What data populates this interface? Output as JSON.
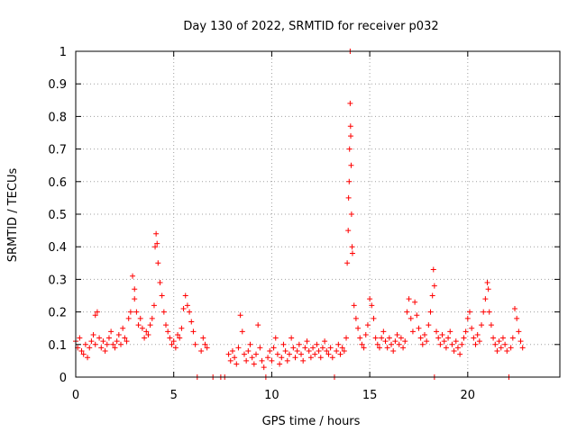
{
  "chart_data": {
    "type": "scatter",
    "title": "Day 130 of 2022, SRMTID for receiver p032",
    "xlabel": "GPS time / hours",
    "ylabel": "SRMTID / TECUs",
    "xlim": [
      0,
      24.7
    ],
    "ylim": [
      0,
      1
    ],
    "x_ticks": [
      0,
      5,
      10,
      15,
      20
    ],
    "x_tick_labels": [
      "0",
      "5",
      "10",
      "15",
      "20"
    ],
    "y_ticks": [
      0,
      0.1,
      0.2,
      0.3,
      0.4,
      0.5,
      0.6,
      0.7,
      0.8,
      0.9,
      1
    ],
    "y_tick_labels": [
      "0",
      "0.1",
      "0.2",
      "0.3",
      "0.4",
      "0.5",
      "0.6",
      "0.7",
      "0.8",
      "0.9",
      "1"
    ],
    "grid": true,
    "marker": "+",
    "color": "#ff0000",
    "series": [
      {
        "name": "SRMTID",
        "points": [
          [
            0.0,
            0.11
          ],
          [
            0.1,
            0.09
          ],
          [
            0.2,
            0.12
          ],
          [
            0.3,
            0.08
          ],
          [
            0.4,
            0.07
          ],
          [
            0.5,
            0.1
          ],
          [
            0.6,
            0.06
          ],
          [
            0.7,
            0.09
          ],
          [
            0.8,
            0.11
          ],
          [
            0.9,
            0.13
          ],
          [
            1.0,
            0.1
          ],
          [
            1.0,
            0.19
          ],
          [
            1.1,
            0.2
          ],
          [
            1.2,
            0.12
          ],
          [
            1.3,
            0.09
          ],
          [
            1.4,
            0.11
          ],
          [
            1.5,
            0.08
          ],
          [
            1.6,
            0.1
          ],
          [
            1.7,
            0.12
          ],
          [
            1.8,
            0.14
          ],
          [
            1.9,
            0.1
          ],
          [
            2.0,
            0.09
          ],
          [
            2.1,
            0.11
          ],
          [
            2.2,
            0.13
          ],
          [
            2.3,
            0.1
          ],
          [
            2.4,
            0.15
          ],
          [
            2.5,
            0.12
          ],
          [
            2.6,
            0.11
          ],
          [
            2.7,
            0.18
          ],
          [
            2.8,
            0.2
          ],
          [
            2.9,
            0.31
          ],
          [
            3.0,
            0.27
          ],
          [
            3.0,
            0.24
          ],
          [
            3.1,
            0.2
          ],
          [
            3.2,
            0.16
          ],
          [
            3.3,
            0.18
          ],
          [
            3.4,
            0.15
          ],
          [
            3.5,
            0.12
          ],
          [
            3.6,
            0.14
          ],
          [
            3.7,
            0.13
          ],
          [
            3.8,
            0.16
          ],
          [
            3.9,
            0.18
          ],
          [
            4.0,
            0.22
          ],
          [
            4.05,
            0.4
          ],
          [
            4.1,
            0.44
          ],
          [
            4.15,
            0.41
          ],
          [
            4.2,
            0.35
          ],
          [
            4.3,
            0.29
          ],
          [
            4.4,
            0.25
          ],
          [
            4.5,
            0.2
          ],
          [
            4.6,
            0.16
          ],
          [
            4.7,
            0.14
          ],
          [
            4.8,
            0.12
          ],
          [
            4.9,
            0.1
          ],
          [
            5.0,
            0.11
          ],
          [
            5.1,
            0.09
          ],
          [
            5.2,
            0.13
          ],
          [
            5.3,
            0.12
          ],
          [
            5.4,
            0.15
          ],
          [
            5.5,
            0.21
          ],
          [
            5.6,
            0.25
          ],
          [
            5.7,
            0.22
          ],
          [
            5.8,
            0.2
          ],
          [
            5.9,
            0.17
          ],
          [
            6.0,
            0.14
          ],
          [
            6.1,
            0.1
          ],
          [
            6.2,
            0.0
          ],
          [
            6.4,
            0.08
          ],
          [
            6.5,
            0.12
          ],
          [
            6.6,
            0.1
          ],
          [
            6.7,
            0.09
          ],
          [
            7.0,
            0.0
          ],
          [
            7.4,
            0.0
          ],
          [
            7.6,
            0.0
          ],
          [
            7.8,
            0.07
          ],
          [
            7.9,
            0.05
          ],
          [
            8.0,
            0.08
          ],
          [
            8.1,
            0.06
          ],
          [
            8.2,
            0.04
          ],
          [
            8.3,
            0.09
          ],
          [
            8.4,
            0.19
          ],
          [
            8.5,
            0.14
          ],
          [
            8.6,
            0.07
          ],
          [
            8.7,
            0.05
          ],
          [
            8.8,
            0.08
          ],
          [
            8.9,
            0.1
          ],
          [
            9.0,
            0.06
          ],
          [
            9.1,
            0.04
          ],
          [
            9.2,
            0.07
          ],
          [
            9.3,
            0.16
          ],
          [
            9.4,
            0.09
          ],
          [
            9.5,
            0.05
          ],
          [
            9.6,
            0.03
          ],
          [
            9.7,
            0.0
          ],
          [
            9.8,
            0.06
          ],
          [
            9.9,
            0.08
          ],
          [
            10.0,
            0.05
          ],
          [
            10.1,
            0.09
          ],
          [
            10.2,
            0.12
          ],
          [
            10.3,
            0.07
          ],
          [
            10.4,
            0.04
          ],
          [
            10.5,
            0.06
          ],
          [
            10.6,
            0.1
          ],
          [
            10.7,
            0.08
          ],
          [
            10.8,
            0.05
          ],
          [
            10.9,
            0.07
          ],
          [
            11.0,
            0.12
          ],
          [
            11.1,
            0.09
          ],
          [
            11.2,
            0.06
          ],
          [
            11.3,
            0.08
          ],
          [
            11.4,
            0.1
          ],
          [
            11.5,
            0.07
          ],
          [
            11.6,
            0.05
          ],
          [
            11.7,
            0.09
          ],
          [
            11.8,
            0.11
          ],
          [
            11.9,
            0.08
          ],
          [
            12.0,
            0.06
          ],
          [
            12.1,
            0.09
          ],
          [
            12.2,
            0.07
          ],
          [
            12.3,
            0.1
          ],
          [
            12.4,
            0.08
          ],
          [
            12.5,
            0.06
          ],
          [
            12.6,
            0.09
          ],
          [
            12.7,
            0.11
          ],
          [
            12.8,
            0.08
          ],
          [
            12.9,
            0.07
          ],
          [
            13.0,
            0.09
          ],
          [
            13.1,
            0.06
          ],
          [
            13.2,
            0.0
          ],
          [
            13.3,
            0.08
          ],
          [
            13.4,
            0.1
          ],
          [
            13.5,
            0.07
          ],
          [
            13.6,
            0.09
          ],
          [
            13.7,
            0.08
          ],
          [
            13.8,
            0.12
          ],
          [
            13.85,
            0.35
          ],
          [
            13.9,
            0.45
          ],
          [
            13.92,
            0.55
          ],
          [
            13.95,
            0.6
          ],
          [
            13.97,
            0.7
          ],
          [
            14.0,
            1.0
          ],
          [
            14.0,
            0.84
          ],
          [
            14.02,
            0.77
          ],
          [
            14.03,
            0.74
          ],
          [
            14.05,
            0.65
          ],
          [
            14.07,
            0.5
          ],
          [
            14.1,
            0.4
          ],
          [
            14.12,
            0.38
          ],
          [
            14.2,
            0.22
          ],
          [
            14.3,
            0.18
          ],
          [
            14.4,
            0.15
          ],
          [
            14.5,
            0.12
          ],
          [
            14.6,
            0.1
          ],
          [
            14.7,
            0.09
          ],
          [
            14.8,
            0.13
          ],
          [
            14.9,
            0.16
          ],
          [
            15.0,
            0.24
          ],
          [
            15.1,
            0.22
          ],
          [
            15.2,
            0.18
          ],
          [
            15.3,
            0.12
          ],
          [
            15.4,
            0.1
          ],
          [
            15.5,
            0.09
          ],
          [
            15.6,
            0.12
          ],
          [
            15.7,
            0.14
          ],
          [
            15.8,
            0.11
          ],
          [
            15.9,
            0.09
          ],
          [
            16.0,
            0.12
          ],
          [
            16.1,
            0.1
          ],
          [
            16.2,
            0.08
          ],
          [
            16.3,
            0.11
          ],
          [
            16.4,
            0.13
          ],
          [
            16.5,
            0.1
          ],
          [
            16.6,
            0.12
          ],
          [
            16.7,
            0.09
          ],
          [
            16.8,
            0.11
          ],
          [
            16.9,
            0.2
          ],
          [
            17.0,
            0.24
          ],
          [
            17.1,
            0.18
          ],
          [
            17.2,
            0.14
          ],
          [
            17.3,
            0.23
          ],
          [
            17.4,
            0.19
          ],
          [
            17.5,
            0.15
          ],
          [
            17.6,
            0.12
          ],
          [
            17.7,
            0.1
          ],
          [
            17.8,
            0.13
          ],
          [
            17.9,
            0.11
          ],
          [
            18.0,
            0.16
          ],
          [
            18.1,
            0.2
          ],
          [
            18.2,
            0.25
          ],
          [
            18.25,
            0.33
          ],
          [
            18.3,
            0.28
          ],
          [
            18.3,
            0.0
          ],
          [
            18.4,
            0.14
          ],
          [
            18.5,
            0.12
          ],
          [
            18.6,
            0.1
          ],
          [
            18.7,
            0.13
          ],
          [
            18.8,
            0.11
          ],
          [
            18.9,
            0.09
          ],
          [
            19.0,
            0.12
          ],
          [
            19.1,
            0.14
          ],
          [
            19.2,
            0.1
          ],
          [
            19.3,
            0.08
          ],
          [
            19.4,
            0.11
          ],
          [
            19.5,
            0.09
          ],
          [
            19.6,
            0.07
          ],
          [
            19.7,
            0.1
          ],
          [
            19.8,
            0.12
          ],
          [
            19.9,
            0.14
          ],
          [
            20.0,
            0.18
          ],
          [
            20.1,
            0.2
          ],
          [
            20.2,
            0.15
          ],
          [
            20.3,
            0.12
          ],
          [
            20.4,
            0.1
          ],
          [
            20.5,
            0.13
          ],
          [
            20.6,
            0.11
          ],
          [
            20.7,
            0.16
          ],
          [
            20.8,
            0.2
          ],
          [
            20.9,
            0.24
          ],
          [
            21.0,
            0.29
          ],
          [
            21.05,
            0.27
          ],
          [
            21.1,
            0.2
          ],
          [
            21.2,
            0.16
          ],
          [
            21.3,
            0.12
          ],
          [
            21.4,
            0.1
          ],
          [
            21.5,
            0.08
          ],
          [
            21.6,
            0.11
          ],
          [
            21.7,
            0.09
          ],
          [
            21.8,
            0.12
          ],
          [
            21.9,
            0.1
          ],
          [
            22.0,
            0.08
          ],
          [
            22.1,
            0.0
          ],
          [
            22.2,
            0.09
          ],
          [
            22.3,
            0.12
          ],
          [
            22.4,
            0.21
          ],
          [
            22.5,
            0.18
          ],
          [
            22.6,
            0.14
          ],
          [
            22.7,
            0.11
          ],
          [
            22.8,
            0.09
          ]
        ]
      }
    ]
  }
}
